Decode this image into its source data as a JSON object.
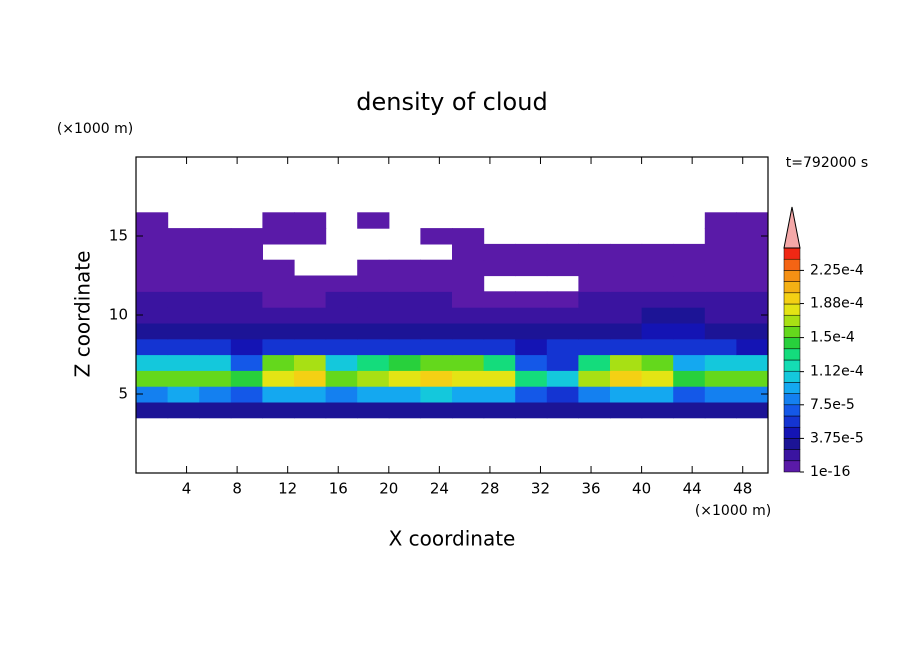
{
  "chart_data": {
    "type": "contour",
    "title": "density of cloud",
    "annotation": "t=792000 s",
    "y_unit_label": "(×1000 m)",
    "x_unit_label": "(×1000 m)",
    "xlabel": "X coordinate",
    "ylabel": "Z coordinate",
    "xlim": [
      0,
      50
    ],
    "ylim": [
      0,
      20
    ],
    "xticks": [
      4,
      8,
      12,
      16,
      20,
      24,
      28,
      32,
      36,
      40,
      44,
      48
    ],
    "yticks": [
      5,
      10,
      15
    ],
    "x": [
      1.25,
      3.75,
      6.25,
      8.75,
      11.25,
      13.75,
      16.25,
      18.75,
      21.25,
      23.75,
      26.25,
      28.75,
      31.25,
      33.75,
      36.25,
      38.75,
      41.25,
      43.75,
      46.25,
      48.75
    ],
    "y": [
      4,
      5,
      6,
      7,
      8,
      9,
      10,
      11,
      12,
      13,
      14,
      15,
      16
    ],
    "z": [
      [
        3e-05,
        3e-05,
        3e-05,
        3e-05,
        3e-05,
        3e-05,
        3e-05,
        3e-05,
        3e-05,
        3e-05,
        3e-05,
        3e-05,
        2.5e-05,
        2.5e-05,
        3e-05,
        3e-05,
        3e-05,
        3e-05,
        3e-05,
        3e-05
      ],
      [
        8e-05,
        9e-05,
        8e-05,
        7e-05,
        9e-05,
        9e-05,
        8e-05,
        9e-05,
        9e-05,
        0.0001,
        9e-05,
        9e-05,
        7e-05,
        6e-05,
        8e-05,
        9e-05,
        9e-05,
        7e-05,
        8e-05,
        8e-05
      ],
      [
        0.00015,
        0.00016,
        0.00016,
        0.00014,
        0.00018,
        0.00019,
        0.00015,
        0.00017,
        0.00018,
        0.00019,
        0.00018,
        0.00018,
        0.00013,
        0.00011,
        0.00017,
        0.00019,
        0.00018,
        0.00014,
        0.00016,
        0.00015
      ],
      [
        0.0001,
        0.00011,
        0.0001,
        7e-05,
        0.00016,
        0.00017,
        0.0001,
        0.00013,
        0.00014,
        0.00015,
        0.00016,
        0.00013,
        7e-05,
        6e-05,
        0.00013,
        0.00017,
        0.00015,
        9e-05,
        0.00011,
        0.0001
      ],
      [
        5e-05,
        5e-05,
        5e-05,
        4e-05,
        6e-05,
        6e-05,
        5e-05,
        5e-05,
        5e-05,
        5e-05,
        5e-05,
        5e-05,
        4e-05,
        5e-05,
        5e-05,
        5e-05,
        6e-05,
        6e-05,
        5e-05,
        4e-05
      ],
      [
        3e-05,
        3e-05,
        3.5e-05,
        3e-05,
        3e-05,
        3e-05,
        3e-05,
        3e-05,
        3e-05,
        2.5e-05,
        3e-05,
        3e-05,
        3e-05,
        3e-05,
        3e-05,
        3e-05,
        4e-05,
        4e-05,
        3e-05,
        3e-05
      ],
      [
        2e-05,
        2e-05,
        2e-05,
        2e-05,
        2e-05,
        1.5e-05,
        2e-05,
        2e-05,
        2e-05,
        2e-05,
        2e-05,
        1.5e-05,
        2e-05,
        2e-05,
        2e-05,
        2e-05,
        2.5e-05,
        2.5e-05,
        2e-05,
        2e-05
      ],
      [
        1.5e-05,
        1.5e-05,
        1.5e-05,
        1.5e-05,
        1e-05,
        1e-05,
        1.5e-05,
        1.5e-05,
        1.5e-05,
        1.5e-05,
        1e-05,
        1e-05,
        1e-05,
        1e-05,
        1.5e-05,
        1.5e-05,
        1.5e-05,
        1.5e-05,
        1.5e-05,
        1.5e-05
      ],
      [
        1e-05,
        1e-05,
        1e-05,
        8e-06,
        8e-06,
        5e-06,
        5e-06,
        8e-06,
        8e-06,
        1e-05,
        8e-06,
        null,
        null,
        null,
        5e-06,
        5e-06,
        8e-06,
        1e-05,
        1e-05,
        1e-05
      ],
      [
        5e-06,
        5e-06,
        5e-06,
        5e-06,
        5e-06,
        null,
        null,
        5e-06,
        5e-06,
        5e-06,
        5e-06,
        5e-06,
        5e-06,
        5e-06,
        5e-06,
        5e-06,
        5e-06,
        5e-06,
        5e-06,
        5e-06
      ],
      [
        5e-06,
        5e-06,
        5e-06,
        5e-06,
        null,
        null,
        null,
        null,
        null,
        null,
        5e-06,
        5e-06,
        5e-06,
        5e-06,
        5e-06,
        5e-06,
        5e-06,
        5e-06,
        5e-06,
        5e-06
      ],
      [
        5e-06,
        5e-06,
        5e-06,
        5e-06,
        5e-06,
        5e-06,
        null,
        null,
        null,
        5e-06,
        5e-06,
        null,
        null,
        null,
        null,
        null,
        null,
        null,
        5e-06,
        5e-06
      ],
      [
        5e-06,
        null,
        null,
        null,
        5e-06,
        5e-06,
        null,
        5e-06,
        null,
        null,
        null,
        null,
        null,
        null,
        null,
        null,
        null,
        null,
        5e-06,
        5e-06
      ]
    ],
    "colorbar": {
      "levels": [
        1e-16,
        1.25e-05,
        2.5e-05,
        3.75e-05,
        5e-05,
        6.25e-05,
        7.5e-05,
        8.75e-05,
        0.0001,
        0.0001125,
        0.000125,
        0.0001375,
        0.00015,
        0.0001625,
        0.000175,
        0.0001875,
        0.0002,
        0.0002125,
        0.000225,
        0.0002375,
        0.00025
      ],
      "colors": [
        "#5a1aa8",
        "#3a14a0",
        "#1c1496",
        "#1414b4",
        "#1434d2",
        "#1458e8",
        "#1480f0",
        "#14a8f0",
        "#14c8dc",
        "#14dcb4",
        "#14dc7c",
        "#28d03c",
        "#64d81c",
        "#a8e014",
        "#e4e414",
        "#f4d014",
        "#f4b014",
        "#f49014",
        "#f46414",
        "#f02814"
      ],
      "over_color": "#f4a8a8",
      "ticks": [
        1e-16,
        {
          "value": 3.75e-05,
          "label": "3.75e-5"
        },
        {
          "value": 7.5e-05,
          "label": "7.5e-5"
        },
        {
          "value": 0.000112,
          "label": "1.12e-4"
        },
        {
          "value": 0.00015,
          "label": "1.5e-4"
        },
        {
          "value": 0.000188,
          "label": "1.88e-4"
        },
        {
          "value": 0.000225,
          "label": "2.25e-4"
        }
      ]
    }
  }
}
